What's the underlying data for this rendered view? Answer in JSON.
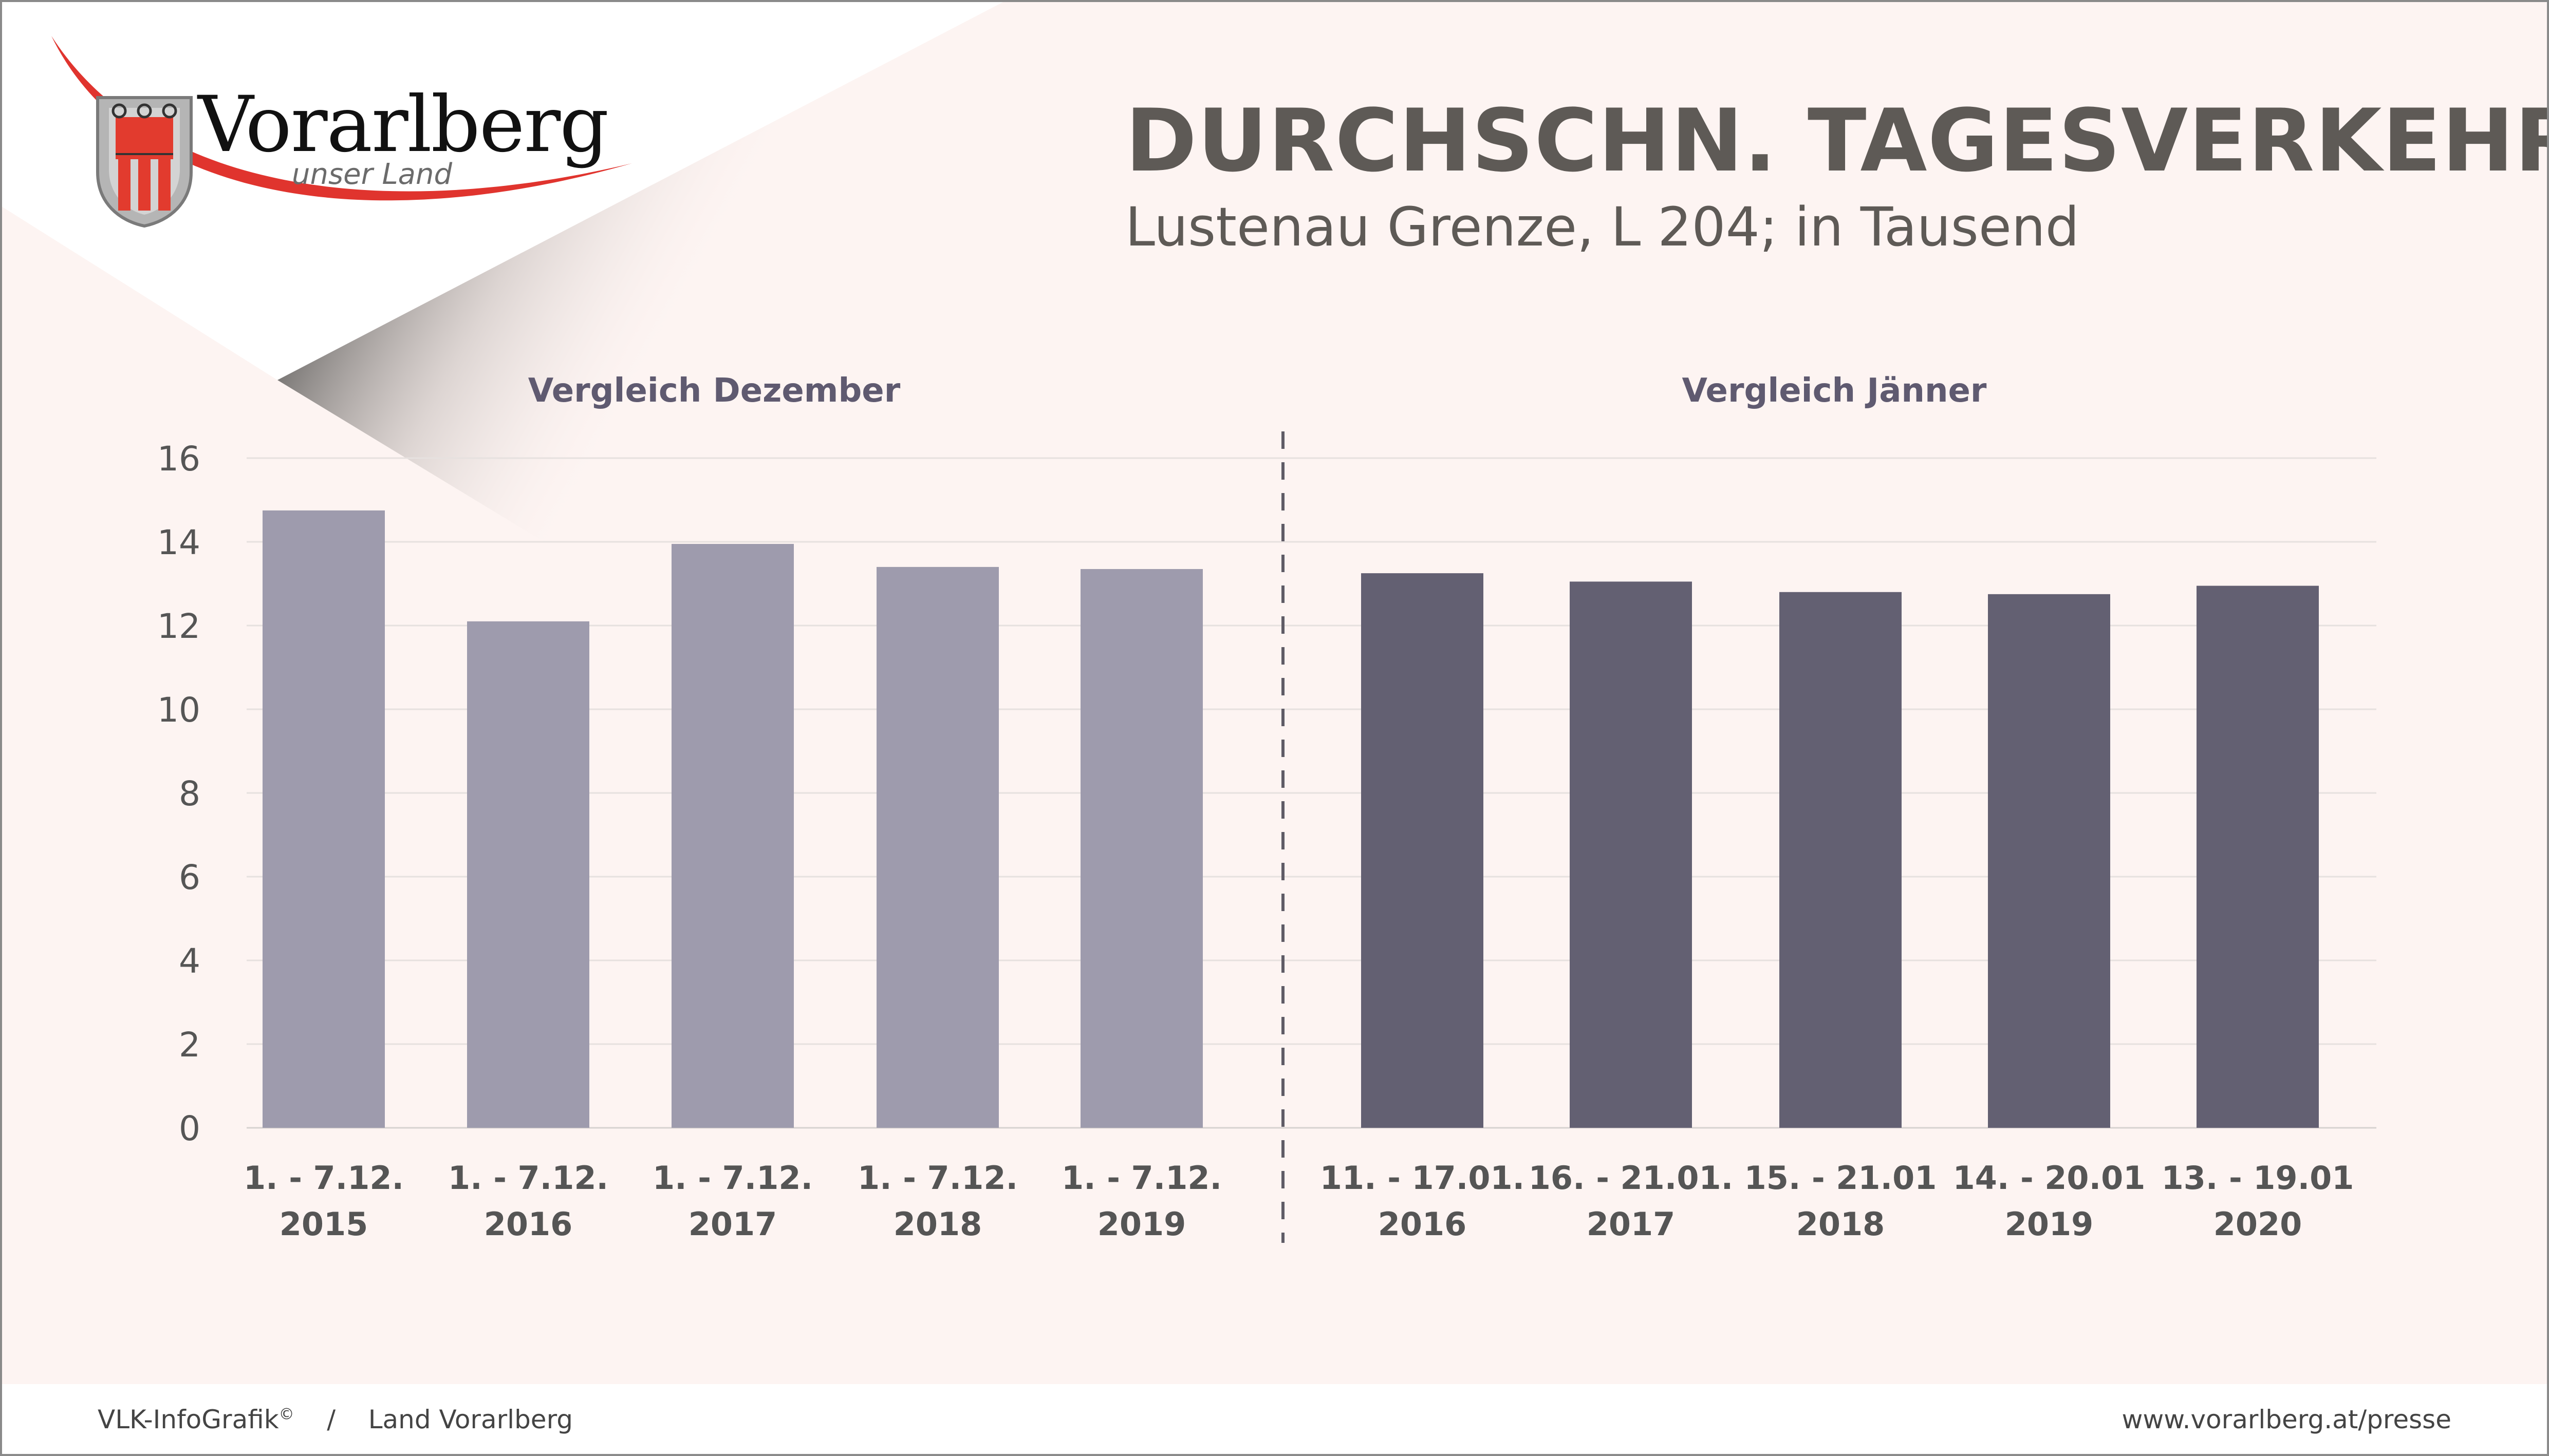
{
  "header": {
    "title": "DURCHSCHN. TAGESVERKEHR",
    "subtitle": "Lustenau Grenze, L 204; in Tausend"
  },
  "logo": {
    "wordmark": "Vorarlberg",
    "tagline": "unser Land",
    "icon": "vorarlberg-coat-of-arms"
  },
  "chart_data": {
    "type": "bar",
    "ylim": [
      0,
      16
    ],
    "yticks": [
      "0",
      "2",
      "4",
      "6",
      "8",
      "10",
      "12",
      "14",
      "16"
    ],
    "grid": true,
    "groups": [
      {
        "label": "Vergleich Dezember",
        "color": "#9e9bad",
        "categories": [
          [
            "1. - 7.12.",
            "2015"
          ],
          [
            "1. - 7.12.",
            "2016"
          ],
          [
            "1. - 7.12.",
            "2017"
          ],
          [
            "1. - 7.12.",
            "2018"
          ],
          [
            "1. - 7.12.",
            "2019"
          ]
        ],
        "values": [
          14.75,
          12.1,
          13.95,
          13.4,
          13.35
        ]
      },
      {
        "label": "Vergleich Jänner",
        "color": "#636072",
        "categories": [
          [
            "11. - 17.01.",
            "2016"
          ],
          [
            "16. - 21.01.",
            "2017"
          ],
          [
            "15. - 21.01",
            "2018"
          ],
          [
            "14. - 20.01",
            "2019"
          ],
          [
            "13. - 19.01",
            "2020"
          ]
        ],
        "values": [
          13.25,
          13.05,
          12.8,
          12.75,
          12.95
        ]
      }
    ]
  },
  "footer": {
    "left": "VLK-InfoGrafik",
    "left_mark": "©",
    "separator": "/",
    "left_org": "Land Vorarlberg",
    "right": "www.vorarlberg.at/presse"
  }
}
